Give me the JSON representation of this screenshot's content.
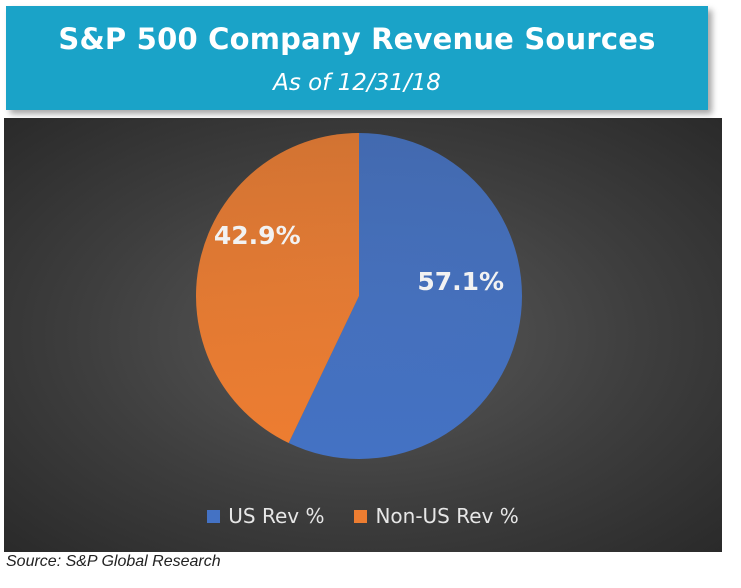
{
  "chart_data": {
    "type": "pie",
    "title": "S&P 500 Company Revenue Sources",
    "subtitle": "As of 12/31/18",
    "slices": [
      {
        "name": "US Rev %",
        "value": 57.1,
        "label": "57.1%",
        "color": "#4472c4"
      },
      {
        "name": "Non-US Rev %",
        "value": 42.9,
        "label": "42.9%",
        "color": "#ed7d31"
      }
    ],
    "legend_position": "bottom",
    "source": "Source: S&P Global Research"
  },
  "colors": {
    "banner": "#1aa3c8",
    "panel": "#3e3e3e"
  }
}
